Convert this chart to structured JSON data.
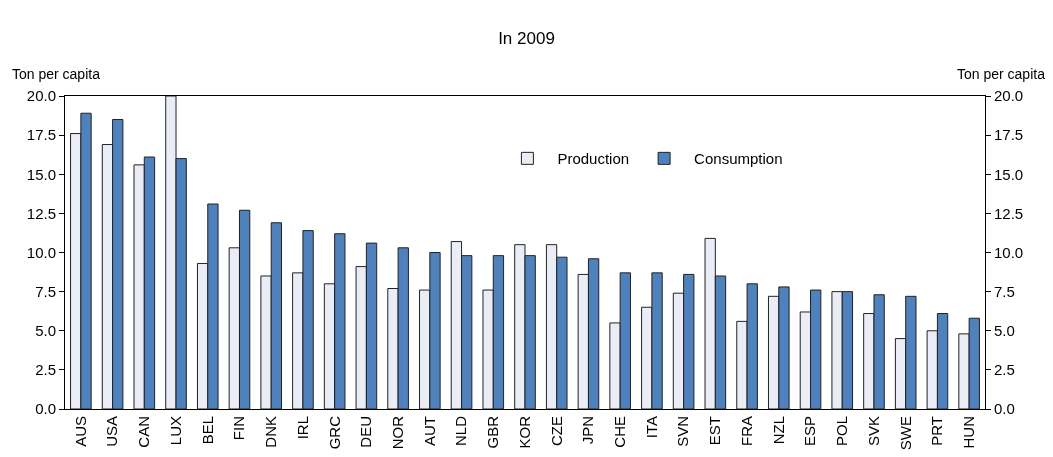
{
  "chart_data": {
    "type": "bar",
    "title": "In 2009",
    "ylabel": "Ton per capita",
    "y2label": "Ton per capita",
    "categories": [
      "AUS",
      "USA",
      "CAN",
      "LUX",
      "BEL",
      "FIN",
      "DNK",
      "IRL",
      "GRC",
      "DEU",
      "NOR",
      "AUT",
      "NLD",
      "GBR",
      "KOR",
      "CZE",
      "JPN",
      "CHE",
      "ITA",
      "SVN",
      "EST",
      "FRA",
      "NZL",
      "ESP",
      "POL",
      "SVK",
      "SWE",
      "PRT",
      "HUN"
    ],
    "series": [
      {
        "name": "Production",
        "color": "#eaedf5",
        "values": [
          17.6,
          16.9,
          15.6,
          20.0,
          9.3,
          10.3,
          8.5,
          8.7,
          8.0,
          9.1,
          7.7,
          7.6,
          10.7,
          7.6,
          10.5,
          10.5,
          8.6,
          5.5,
          6.5,
          7.4,
          10.9,
          5.6,
          7.2,
          6.2,
          7.5,
          6.1,
          4.5,
          5.0,
          4.8
        ]
      },
      {
        "name": "Consumption",
        "color": "#4f81bd",
        "values": [
          18.9,
          18.5,
          16.1,
          16.0,
          13.1,
          12.7,
          11.9,
          11.4,
          11.2,
          10.6,
          10.3,
          10.0,
          9.8,
          9.8,
          9.8,
          9.7,
          9.6,
          8.7,
          8.7,
          8.6,
          8.5,
          8.0,
          7.8,
          7.6,
          7.5,
          7.3,
          7.2,
          6.1,
          5.8
        ]
      }
    ],
    "ylim": [
      0,
      20
    ],
    "yticks": [
      {
        "value": 0,
        "label": "0.0"
      },
      {
        "value": 2.5,
        "label": "2.5"
      },
      {
        "value": 5,
        "label": "5.0"
      },
      {
        "value": 7.5,
        "label": "7.5"
      },
      {
        "value": 10,
        "label": "10.0"
      },
      {
        "value": 12.5,
        "label": "12.5"
      },
      {
        "value": 15,
        "label": "15.0"
      },
      {
        "value": 17.5,
        "label": "17.5"
      },
      {
        "value": 20,
        "label": "20.0"
      }
    ],
    "y2lim": [
      0,
      20
    ],
    "y2ticks": [
      {
        "value": 0,
        "label": "0.0"
      },
      {
        "value": 2.5,
        "label": "2.5"
      },
      {
        "value": 5,
        "label": "5.0"
      },
      {
        "value": 7.5,
        "label": "7.5"
      },
      {
        "value": 10,
        "label": "10.0"
      },
      {
        "value": 12.5,
        "label": "12.5"
      },
      {
        "value": 15,
        "label": "15.0"
      },
      {
        "value": 17.5,
        "label": "17.5"
      },
      {
        "value": 20,
        "label": "20.0"
      }
    ],
    "legend": "top right",
    "grid": false
  }
}
